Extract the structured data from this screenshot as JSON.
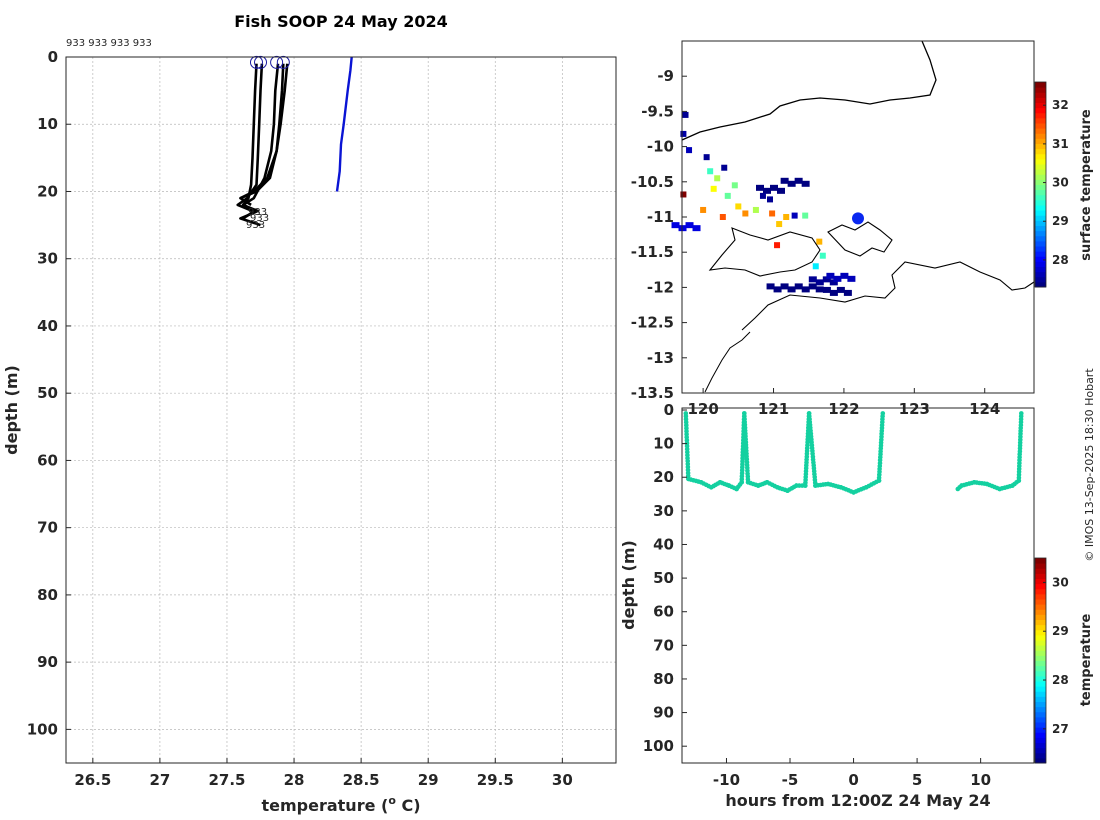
{
  "title": "Fish SOOP 24 May 2024",
  "credit": "© IMOS 13-Sep-2025 18:30 Hobart",
  "colors": {
    "profile": "#000000",
    "reference": "#0a14d4",
    "track_dots": "#14d0a0",
    "blob": "#0a28f0"
  },
  "chart_data": [
    {
      "type": "line",
      "name": "temperature-profile",
      "title": "Fish SOOP 24 May 2024",
      "xlabel": "temperature (° C)",
      "xlabel_main": "temperature (",
      "xlabel_sup": "o",
      "xlabel_end": " C)",
      "ylabel": "depth (m)",
      "xlim": [
        26.3,
        30.4
      ],
      "ylim": [
        0,
        105
      ],
      "y_reversed": true,
      "xticks": [
        26.5,
        27,
        27.5,
        28,
        28.5,
        29,
        29.5,
        30
      ],
      "xtick_labels": [
        "26.5",
        "27",
        "27.5",
        "28",
        "28.5",
        "29",
        "29.5",
        "30"
      ],
      "yticks": [
        0,
        10,
        20,
        30,
        40,
        50,
        60,
        70,
        80,
        90,
        100
      ],
      "ytick_labels": [
        "0",
        "10",
        "20",
        "30",
        "40",
        "50",
        "60",
        "70",
        "80",
        "90",
        "100"
      ],
      "top_label": "933 933 933 933",
      "bottom_labels": [
        "933",
        "933",
        "933"
      ],
      "series": [
        {
          "name": "profile-1",
          "temperature": [
            27.72,
            27.71,
            27.7,
            27.69,
            27.68,
            27.66,
            27.62,
            27.72,
            27.6,
            27.75
          ],
          "depth": [
            1,
            5,
            10,
            15,
            19,
            21,
            22,
            23,
            24,
            25
          ]
        },
        {
          "name": "profile-2",
          "temperature": [
            27.76,
            27.75,
            27.74,
            27.73,
            27.72,
            27.65,
            27.58,
            27.7,
            27.62
          ],
          "depth": [
            1,
            5,
            10,
            15,
            19,
            21,
            22,
            23,
            24
          ]
        },
        {
          "name": "profile-3",
          "temperature": [
            27.88,
            27.86,
            27.85,
            27.83,
            27.78,
            27.7,
            27.62,
            27.74
          ],
          "depth": [
            1,
            5,
            10,
            14,
            18,
            21,
            22,
            23
          ]
        },
        {
          "name": "profile-4",
          "temperature": [
            27.92,
            27.91,
            27.89,
            27.87,
            27.82,
            27.72,
            27.6,
            27.68
          ],
          "depth": [
            1,
            5,
            10,
            14,
            18,
            20,
            21,
            22
          ]
        },
        {
          "name": "profile-5",
          "temperature": [
            27.95,
            27.93,
            27.9,
            27.87,
            27.8,
            27.7,
            27.6
          ],
          "depth": [
            1,
            5,
            10,
            14,
            18,
            20,
            21
          ]
        }
      ],
      "reference": {
        "name": "reference-profile",
        "temperature": [
          28.43,
          28.42,
          28.4,
          28.37,
          28.35,
          28.34,
          28.32
        ],
        "depth": [
          0,
          2,
          5,
          10,
          13,
          17,
          20
        ]
      },
      "surface_markers": {
        "temperature": [
          27.72,
          27.75,
          27.87,
          27.92
        ],
        "depth": [
          0.8,
          0.8,
          0.8,
          0.8
        ]
      }
    },
    {
      "type": "heatmap",
      "name": "map-surface-temperature",
      "xlim": [
        119.7,
        124.7
      ],
      "ylim": [
        -13.5,
        -8.5
      ],
      "yticks": [
        -9,
        -9.5,
        -10,
        -10.5,
        -11,
        -11.5,
        -12,
        -12.5,
        -13,
        -13.5
      ],
      "ytick_labels": [
        "-9",
        "-9.5",
        "-10",
        "-10.5",
        "-11",
        "-11.5",
        "-12",
        "-12.5",
        "-13",
        "-13.5"
      ],
      "xticks": [
        120,
        121,
        122,
        123,
        124
      ],
      "xtick_labels": [
        "120",
        "121",
        "122",
        "123",
        "124"
      ],
      "colorbar": {
        "label": "surface temperature",
        "range": [
          27.3,
          32.6
        ],
        "ticks": [
          28,
          29,
          30,
          31,
          32
        ],
        "tick_labels": [
          "28",
          "29",
          "30",
          "31",
          "32"
        ]
      },
      "blob": {
        "lon": 122.2,
        "lat": -11.02,
        "value": 27.3
      },
      "sst_cells": [
        {
          "lon": 119.72,
          "lat": -9.82,
          "value": 27.5
        },
        {
          "lon": 119.75,
          "lat": -9.55,
          "value": 27.4
        },
        {
          "lon": 119.8,
          "lat": -10.05,
          "value": 27.6
        },
        {
          "lon": 120.05,
          "lat": -10.15,
          "value": 27.4
        },
        {
          "lon": 120.1,
          "lat": -10.35,
          "value": 29.6
        },
        {
          "lon": 120.2,
          "lat": -10.45,
          "value": 30.2
        },
        {
          "lon": 120.3,
          "lat": -10.3,
          "value": 27.4
        },
        {
          "lon": 120.15,
          "lat": -10.6,
          "value": 30.6
        },
        {
          "lon": 120.35,
          "lat": -10.7,
          "value": 29.8
        },
        {
          "lon": 120.45,
          "lat": -10.55,
          "value": 29.9
        },
        {
          "lon": 120.5,
          "lat": -10.85,
          "value": 30.8
        },
        {
          "lon": 120.6,
          "lat": -10.95,
          "value": 31.2
        },
        {
          "lon": 120.75,
          "lat": -10.9,
          "value": 30.2
        },
        {
          "lon": 120.85,
          "lat": -10.7,
          "value": 27.4
        },
        {
          "lon": 120.95,
          "lat": -10.75,
          "value": 27.4
        },
        {
          "lon": 120.98,
          "lat": -10.95,
          "value": 31.4
        },
        {
          "lon": 121.08,
          "lat": -11.1,
          "value": 30.9
        },
        {
          "lon": 121.18,
          "lat": -11.0,
          "value": 31.0
        },
        {
          "lon": 121.3,
          "lat": -10.98,
          "value": 27.6
        },
        {
          "lon": 121.45,
          "lat": -10.98,
          "value": 29.8
        },
        {
          "lon": 120.28,
          "lat": -11.0,
          "value": 31.5
        },
        {
          "lon": 120.0,
          "lat": -10.9,
          "value": 31.2
        },
        {
          "lon": 121.05,
          "lat": -11.4,
          "value": 31.8
        },
        {
          "lon": 121.65,
          "lat": -11.35,
          "value": 31.0
        },
        {
          "lon": 121.7,
          "lat": -11.55,
          "value": 29.6
        },
        {
          "lon": 121.6,
          "lat": -11.7,
          "value": 29.2
        },
        {
          "lon": 119.72,
          "lat": -10.68,
          "value": 32.6
        }
      ],
      "cold_patches": [
        {
          "lon": 119.75,
          "lat": -11.13,
          "value": 27.8
        },
        {
          "lon": 121.7,
          "lat": -11.9,
          "value": 27.4
        },
        {
          "lon": 121.5,
          "lat": -12.0,
          "value": 27.3
        },
        {
          "lon": 121.1,
          "lat": -12.0,
          "value": 27.3
        },
        {
          "lon": 121.95,
          "lat": -11.85,
          "value": 27.6
        },
        {
          "lon": 121.9,
          "lat": -12.05,
          "value": 27.3
        },
        {
          "lon": 121.3,
          "lat": -10.5,
          "value": 27.3
        },
        {
          "lon": 120.95,
          "lat": -10.6,
          "value": 27.3
        }
      ]
    },
    {
      "type": "scatter",
      "name": "depth-vs-time",
      "xlabel": "hours from 12:00Z 24 May 24",
      "ylabel": "depth (m)",
      "xlim": [
        -13.5,
        14.2
      ],
      "ylim": [
        0,
        105
      ],
      "y_reversed": true,
      "xticks": [
        -10,
        -5,
        0,
        5,
        10
      ],
      "xtick_labels": [
        "-10",
        "-5",
        "0",
        "5",
        "10"
      ],
      "yticks": [
        0,
        10,
        20,
        30,
        40,
        50,
        60,
        70,
        80,
        90,
        100
      ],
      "ytick_labels": [
        "0",
        "10",
        "20",
        "30",
        "40",
        "50",
        "60",
        "70",
        "80",
        "90",
        "100"
      ],
      "colorbar": {
        "label": "temperature",
        "range": [
          26.3,
          30.5
        ],
        "ticks": [
          27,
          28,
          29,
          30
        ],
        "tick_labels": [
          "27",
          "28",
          "29",
          "30"
        ]
      },
      "track": {
        "hours": [
          -13.2,
          -13.0,
          -12.0,
          -11.2,
          -10.5,
          -9.8,
          -9.2,
          -8.8,
          -8.6,
          -8.3,
          -7.5,
          -6.8,
          -6.0,
          -5.2,
          -4.5,
          -3.8,
          -3.5,
          -3.0,
          -2.0,
          -1.0,
          0.0,
          1.0,
          2.0,
          2.3,
          8.2,
          8.5,
          9.5,
          10.5,
          11.5,
          12.5,
          13.0,
          13.2
        ],
        "depth": [
          1,
          20.5,
          21.5,
          23,
          21.5,
          22.5,
          23.5,
          21.5,
          1,
          21.5,
          22.5,
          21.5,
          23,
          24,
          22.5,
          22.5,
          1,
          22.5,
          22,
          23,
          24.5,
          23,
          21,
          1,
          23.5,
          22.5,
          21.5,
          22,
          23.5,
          22.5,
          21,
          1
        ]
      }
    }
  ]
}
